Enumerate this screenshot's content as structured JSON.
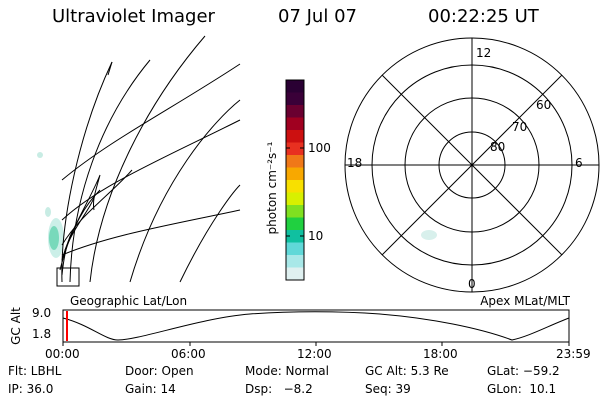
{
  "header": {
    "instrument": "Ultraviolet Imager",
    "date": "07 Jul 07",
    "time": "00:22:25 UT"
  },
  "colorbar": {
    "unit_label": "photon cm⁻²s⁻¹",
    "tick_labels": [
      "100",
      "10"
    ],
    "colors": [
      "#2a0033",
      "#3a0038",
      "#6a0030",
      "#a00020",
      "#cc1010",
      "#e83020",
      "#f07818",
      "#f8a800",
      "#f8e000",
      "#d8f000",
      "#80e020",
      "#20d040",
      "#10c0a0",
      "#60d8d8",
      "#a8e8e8",
      "#dff0f0"
    ]
  },
  "geo_panel": {
    "label": "Geographic Lat/Lon"
  },
  "polar_panel": {
    "label": "Apex MLat/MLT",
    "mlt_labels": {
      "top": "12",
      "left": "18",
      "right": "6",
      "bottom": "0"
    },
    "lat_labels": [
      "60",
      "70",
      "80"
    ]
  },
  "altitude_plot": {
    "y_axis_label": "GC Alt",
    "y_ticks": [
      "9.0",
      "1.8"
    ],
    "x_ticks": [
      "00:00",
      "06:00",
      "12:00",
      "18:00",
      "23:59"
    ],
    "marker_color": "#ff0000"
  },
  "info": {
    "row1": {
      "flt": "Flt: LBHL",
      "door": "Door: Open",
      "mode": "Mode: Normal",
      "gcalt": "GC Alt: 5.3 Re",
      "glat": "GLat: −59.2"
    },
    "row2": {
      "ip": "IP: 36.0",
      "gain": "Gain: 14",
      "dsp": "Dsp:   −8.2",
      "seq": "Seq: 39",
      "glon": "GLon:  10.1"
    }
  }
}
